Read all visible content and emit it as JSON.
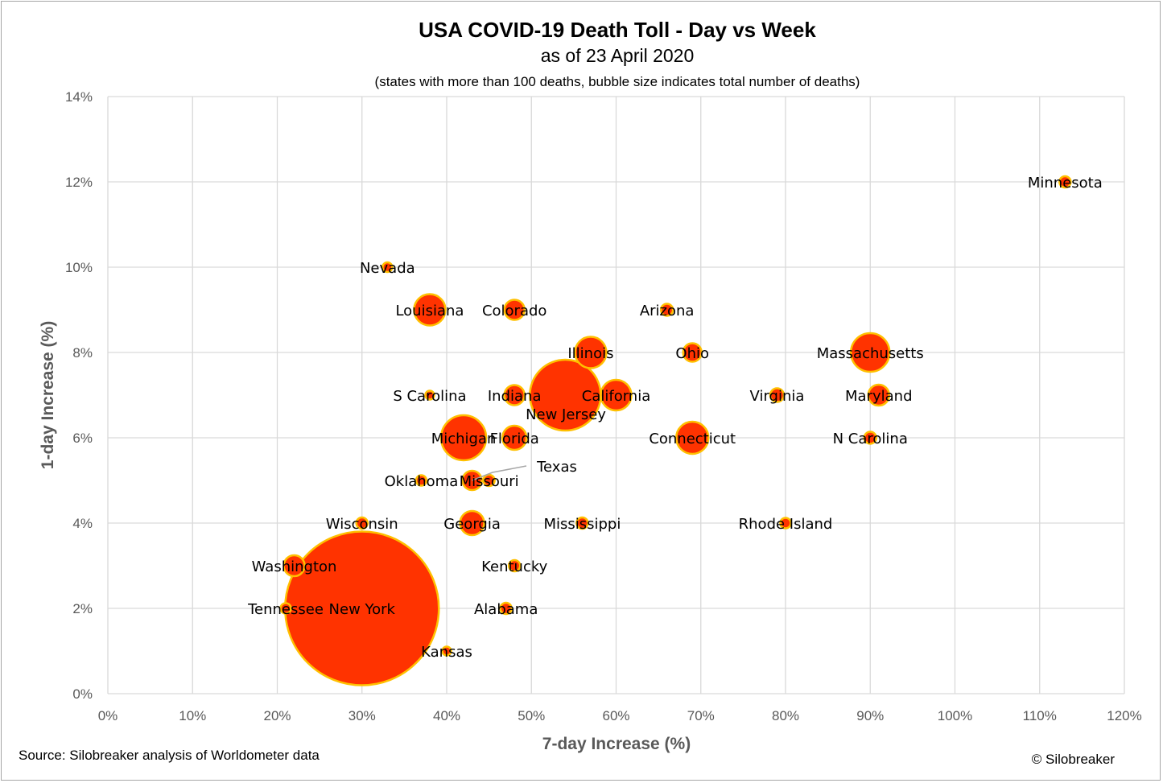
{
  "chart_data": {
    "type": "scatter",
    "title": "USA COVID-19 Death Toll - Day vs Week",
    "subtitle": "as of 23 April 2020",
    "note": "(states with more than 100 deaths, bubble size indicates total number of deaths)",
    "xlabel": "7-day Increase (%)",
    "ylabel": "1-day Increase (%)",
    "xlim": [
      0,
      120
    ],
    "ylim": [
      0,
      14
    ],
    "x_ticks": [
      "0%",
      "10%",
      "20%",
      "30%",
      "40%",
      "50%",
      "60%",
      "70%",
      "80%",
      "90%",
      "100%",
      "110%",
      "120%"
    ],
    "y_ticks": [
      "0%",
      "2%",
      "4%",
      "6%",
      "8%",
      "10%",
      "12%",
      "14%"
    ],
    "grid": true,
    "bubble_fill": "#ff3300",
    "bubble_stroke": "#ffc000",
    "points": [
      {
        "label": "New York",
        "x": 30,
        "y": 2,
        "size": 95.5
      },
      {
        "label": "New Jersey",
        "x": 54,
        "y": 7,
        "size": 44
      },
      {
        "label": "Michigan",
        "x": 42,
        "y": 6,
        "size": 28
      },
      {
        "label": "Massachusetts",
        "x": 90,
        "y": 8,
        "size": 24
      },
      {
        "label": "Connecticut",
        "x": 69,
        "y": 6,
        "size": 20
      },
      {
        "label": "Louisiana",
        "x": 38,
        "y": 9,
        "size": 19.5
      },
      {
        "label": "Illinois",
        "x": 57,
        "y": 8,
        "size": 19.5
      },
      {
        "label": "California",
        "x": 60,
        "y": 7,
        "size": 19
      },
      {
        "label": "Florida",
        "x": 48,
        "y": 6,
        "size": 15
      },
      {
        "label": "Georgia",
        "x": 43,
        "y": 4,
        "size": 15
      },
      {
        "label": "Washington",
        "x": 22,
        "y": 3,
        "size": 13
      },
      {
        "label": "Maryland",
        "x": 91,
        "y": 7,
        "size": 13
      },
      {
        "label": "Indiana",
        "x": 48,
        "y": 7,
        "size": 12.5
      },
      {
        "label": "Colorado",
        "x": 48,
        "y": 9,
        "size": 12.5
      },
      {
        "label": "Texas",
        "x": 43,
        "y": 5,
        "size": 12
      },
      {
        "label": "Ohio",
        "x": 69,
        "y": 8,
        "size": 11.5
      },
      {
        "label": "Virginia",
        "x": 79,
        "y": 7,
        "size": 8.5
      },
      {
        "label": "Arizona",
        "x": 66,
        "y": 9,
        "size": 7.5
      },
      {
        "label": "N Carolina",
        "x": 90,
        "y": 6,
        "size": 7.5
      },
      {
        "label": "Minnesota",
        "x": 113,
        "y": 12,
        "size": 7
      },
      {
        "label": "Missouri",
        "x": 45,
        "y": 5,
        "size": 7
      },
      {
        "label": "Mississippi",
        "x": 56,
        "y": 4,
        "size": 7
      },
      {
        "label": "Alabama",
        "x": 47,
        "y": 2,
        "size": 7
      },
      {
        "label": "Kentucky",
        "x": 48,
        "y": 3,
        "size": 7
      },
      {
        "label": "Wisconsin",
        "x": 30,
        "y": 4,
        "size": 7
      },
      {
        "label": "Rhode Island",
        "x": 80,
        "y": 4,
        "size": 6.5
      },
      {
        "label": "Tennessee",
        "x": 21,
        "y": 2,
        "size": 6.5
      },
      {
        "label": "Oklahoma",
        "x": 37,
        "y": 5,
        "size": 6.5
      },
      {
        "label": "Nevada",
        "x": 33,
        "y": 10,
        "size": 6
      },
      {
        "label": "S Carolina",
        "x": 38,
        "y": 7,
        "size": 5.5
      },
      {
        "label": "Kansas",
        "x": 40,
        "y": 1,
        "size": 5.5
      }
    ]
  },
  "footer": {
    "source": "Source: Silobreaker analysis of Worldometer data",
    "copyright": "© Silobreaker"
  }
}
